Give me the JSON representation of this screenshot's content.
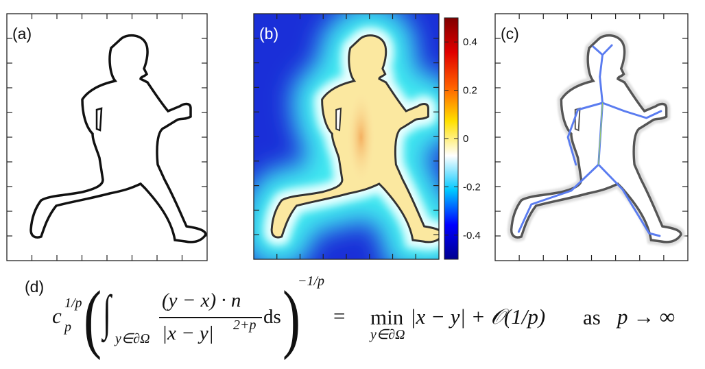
{
  "panels": {
    "a": {
      "label": "(a)"
    },
    "b": {
      "label": "(b)"
    },
    "c": {
      "label": "(c)"
    }
  },
  "colorbar": {
    "range": [
      -0.5,
      0.5
    ],
    "ticks": [
      "0.4",
      "0.2",
      "0",
      "-0.2",
      "-0.4"
    ],
    "tick_values": [
      0.4,
      0.2,
      0,
      -0.2,
      -0.4
    ],
    "colors": [
      "#00008f",
      "#0000ff",
      "#00c8ff",
      "#ffffff",
      "#ffe000",
      "#ff6000",
      "#e00000",
      "#800000"
    ]
  },
  "equation": {
    "label": "(d)",
    "c": "c",
    "c_sub": "p",
    "c_sup": "1/p",
    "int_sub": "y∈∂Ω",
    "numerator": "(y − x) · n",
    "denominator": "|x − y|",
    "denominator_sup": "2+p",
    "ds": "ds",
    "outer_sup": "−1/p",
    "equals": "=",
    "min": "min",
    "min_sub": "y∈∂Ω",
    "rhs": "|x − y| + 𝒪(1/p)",
    "as": "as",
    "limit": "p → ∞"
  }
}
